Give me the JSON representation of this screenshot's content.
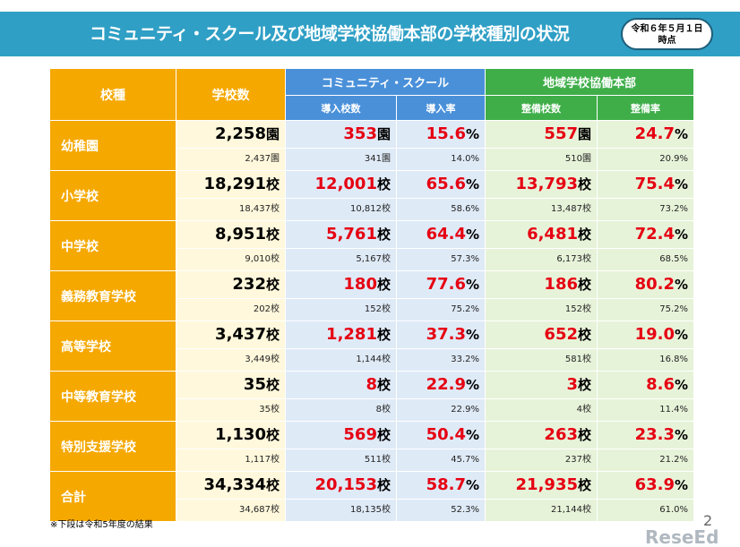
{
  "header": {
    "title": "コミュニティ・スクール及び地域学校協働本部の学校種別の状況",
    "date_line1": "令和６年５月１日",
    "date_line2": "時点"
  },
  "table": {
    "col_school_type": "校種",
    "col_school_count": "学校数",
    "group_cs": "コミュニティ・スクール",
    "group_hq": "地域学校協働本部",
    "sub_cs_count": "導入校数",
    "sub_cs_rate": "導入率",
    "sub_hq_count": "整備校数",
    "sub_hq_rate": "整備率",
    "rows": [
      {
        "name": "幼稚園",
        "unit": "園",
        "total": "2,258",
        "total_prev": "2,437園",
        "cs": "353",
        "cs_prev": "341園",
        "cs_rate": "15.6",
        "cs_rate_prev": "14.0%",
        "hq": "557",
        "hq_prev": "510園",
        "hq_rate": "24.7",
        "hq_rate_prev": "20.9%"
      },
      {
        "name": "小学校",
        "unit": "校",
        "total": "18,291",
        "total_prev": "18,437校",
        "cs": "12,001",
        "cs_prev": "10,812校",
        "cs_rate": "65.6",
        "cs_rate_prev": "58.6%",
        "hq": "13,793",
        "hq_prev": "13,487校",
        "hq_rate": "75.4",
        "hq_rate_prev": "73.2%"
      },
      {
        "name": "中学校",
        "unit": "校",
        "total": "8,951",
        "total_prev": "9,010校",
        "cs": "5,761",
        "cs_prev": "5,167校",
        "cs_rate": "64.4",
        "cs_rate_prev": "57.3%",
        "hq": "6,481",
        "hq_prev": "6,173校",
        "hq_rate": "72.4",
        "hq_rate_prev": "68.5%"
      },
      {
        "name": "義務教育学校",
        "unit": "校",
        "total": "232",
        "total_prev": "202校",
        "cs": "180",
        "cs_prev": "152校",
        "cs_rate": "77.6",
        "cs_rate_prev": "75.2%",
        "hq": "186",
        "hq_prev": "152校",
        "hq_rate": "80.2",
        "hq_rate_prev": "75.2%"
      },
      {
        "name": "高等学校",
        "unit": "校",
        "total": "3,437",
        "total_prev": "3,449校",
        "cs": "1,281",
        "cs_prev": "1,144校",
        "cs_rate": "37.3",
        "cs_rate_prev": "33.2%",
        "hq": "652",
        "hq_prev": "581校",
        "hq_rate": "19.0",
        "hq_rate_prev": "16.8%"
      },
      {
        "name": "中等教育学校",
        "unit": "校",
        "total": "35",
        "total_prev": "35校",
        "cs": "8",
        "cs_prev": "8校",
        "cs_rate": "22.9",
        "cs_rate_prev": "22.9%",
        "hq": "3",
        "hq_prev": "4校",
        "hq_rate": "8.6",
        "hq_rate_prev": "11.4%"
      },
      {
        "name": "特別支援学校",
        "unit": "校",
        "total": "1,130",
        "total_prev": "1,117校",
        "cs": "569",
        "cs_prev": "511校",
        "cs_rate": "50.4",
        "cs_rate_prev": "45.7%",
        "hq": "263",
        "hq_prev": "237校",
        "hq_rate": "23.3",
        "hq_rate_prev": "21.2%"
      },
      {
        "name": "合計",
        "unit": "校",
        "total": "34,334",
        "total_prev": "34,687校",
        "cs": "20,153",
        "cs_prev": "18,135校",
        "cs_rate": "58.7",
        "cs_rate_prev": "52.3%",
        "hq": "21,935",
        "hq_prev": "21,144校",
        "hq_rate": "63.9",
        "hq_rate_prev": "61.0%"
      }
    ]
  },
  "footer": {
    "note": "※下段は令和5年度の結果",
    "page_number": "2",
    "logo_text": "ReseEd",
    "logo_small": "リシード"
  },
  "colors": {
    "banner": "#2f9fc5",
    "yellow_header": "#f5a800",
    "blue_header": "#4a90d9",
    "green_header": "#3fae49",
    "red_text": "#e60012"
  }
}
